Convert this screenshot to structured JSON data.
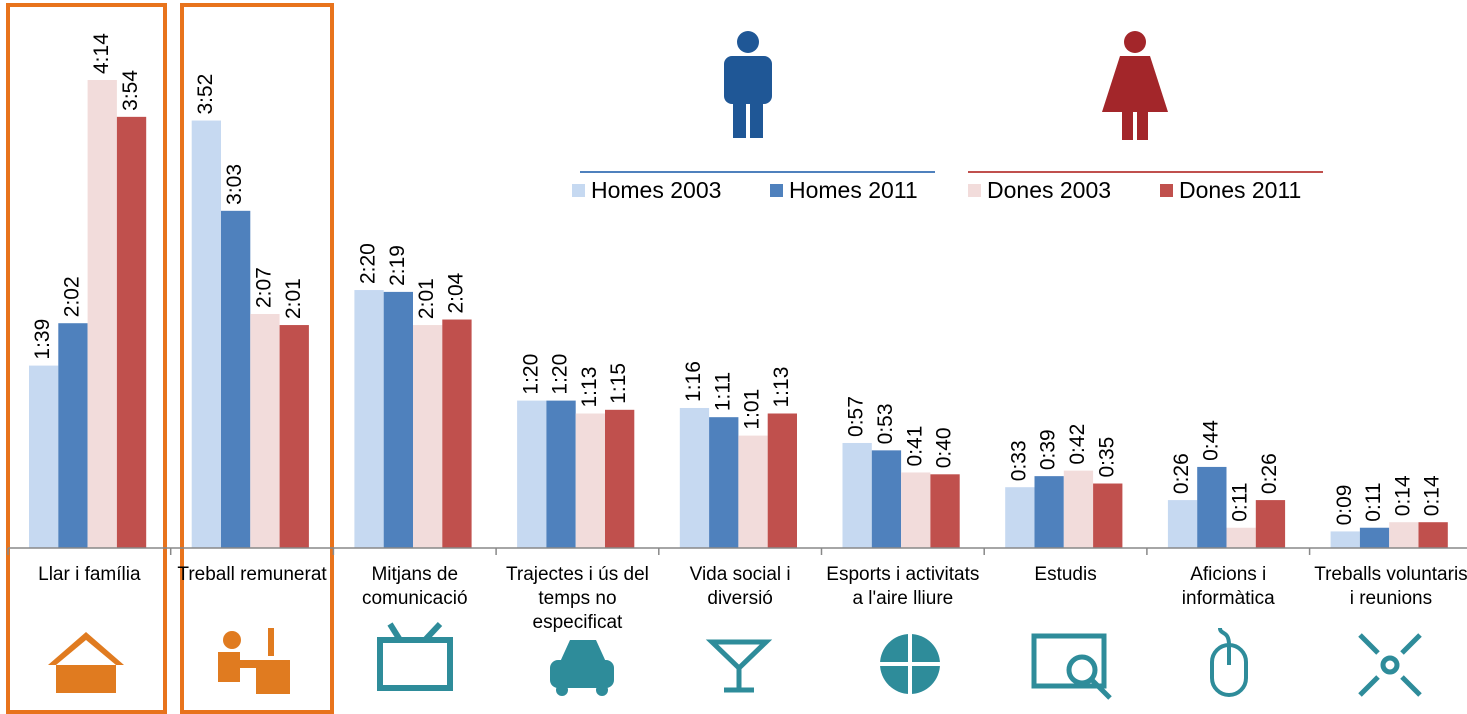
{
  "chart_data": {
    "type": "bar",
    "categories": [
      "Llar i família",
      "Treball remunerat",
      "Mitjans de comunicació",
      "Trajectes i ús del temps no especificat",
      "Vida social i diversió",
      "Esports i activitats a l'aire lliure",
      "Estudis",
      "Aficions i informàtica",
      "Treballs voluntaris i reunions"
    ],
    "series": [
      {
        "name": "Homes 2003",
        "color": "#c6d9f1",
        "values": [
          99,
          232,
          140,
          80,
          76,
          57,
          33,
          26,
          9
        ],
        "value_labels": [
          "1:39",
          "3:52",
          "2:20",
          "1:20",
          "1:16",
          "0:57",
          "0:33",
          "0:26",
          "0:09"
        ]
      },
      {
        "name": "Homes 2011",
        "color": "#4f81bd",
        "values": [
          122,
          183,
          139,
          80,
          71,
          53,
          39,
          44,
          11
        ],
        "value_labels": [
          "2:02",
          "3:03",
          "2:19",
          "1:20",
          "1:11",
          "0:53",
          "0:39",
          "0:44",
          "0:11"
        ]
      },
      {
        "name": "Dones 2003",
        "color": "#f2dcdb",
        "values": [
          254,
          127,
          121,
          73,
          61,
          41,
          42,
          11,
          14
        ],
        "value_labels": [
          "4:14",
          "2:07",
          "2:01",
          "1:13",
          "1:01",
          "0:41",
          "0:42",
          "0:11",
          "0:14"
        ]
      },
      {
        "name": "Dones 2011",
        "color": "#c0504d",
        "values": [
          234,
          121,
          124,
          75,
          73,
          40,
          35,
          26,
          14
        ],
        "value_labels": [
          "3:54",
          "2:01",
          "2:04",
          "1:15",
          "1:13",
          "0:40",
          "0:35",
          "0:26",
          "0:14"
        ]
      }
    ]
  }
}
